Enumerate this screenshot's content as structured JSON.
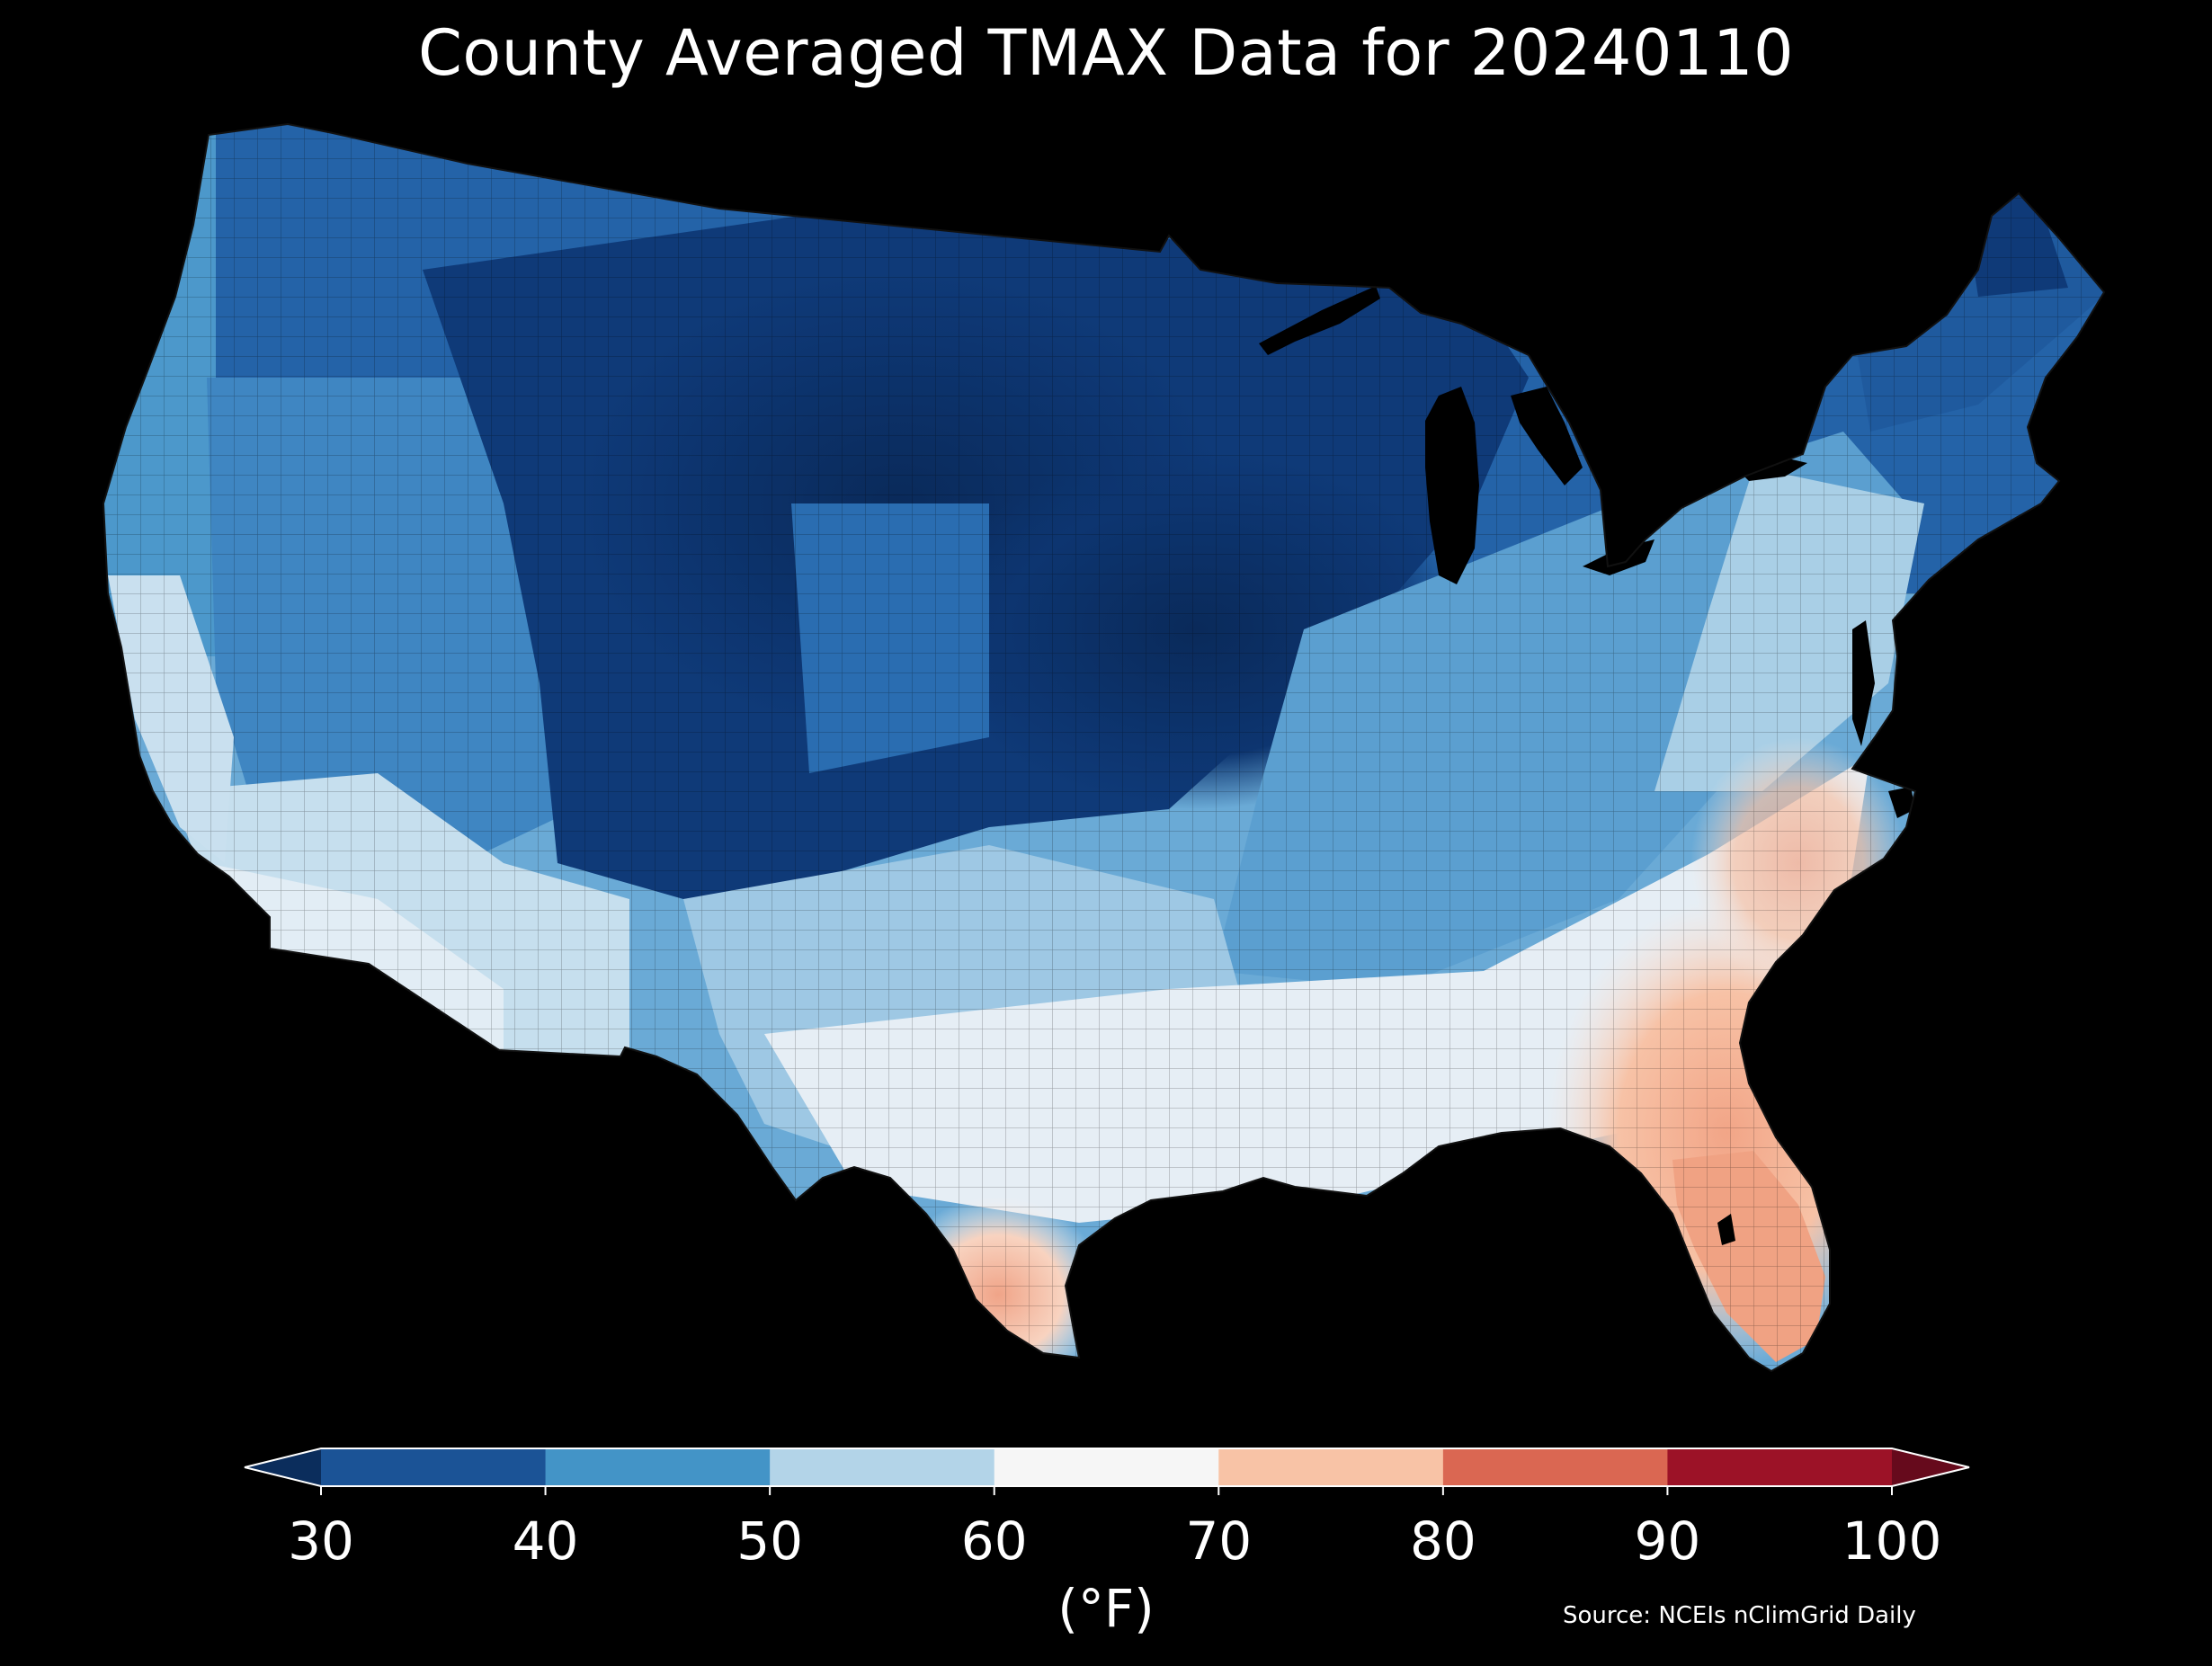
{
  "title": "County Averaged TMAX Data for 20240110",
  "colorbar": {
    "units": "(°F)",
    "ticks": [
      "30",
      "40",
      "50",
      "60",
      "70",
      "80",
      "90",
      "100"
    ],
    "bins": [
      {
        "range": "<30",
        "color": "#0b2d5c"
      },
      {
        "range": "30-40",
        "color": "#1b5396"
      },
      {
        "range": "40-50",
        "color": "#4394c7"
      },
      {
        "range": "50-60",
        "color": "#b3d4e8"
      },
      {
        "range": "60-70",
        "color": "#f6f6f6"
      },
      {
        "range": "70-80",
        "color": "#f8c3a6"
      },
      {
        "range": "80-90",
        "color": "#da6752"
      },
      {
        "range": "90-100",
        "color": "#9c1227"
      },
      {
        "range": ">100",
        "color": "#660a1c"
      }
    ]
  },
  "source": "Source: NCEIs nClimGrid Daily",
  "map": {
    "region": "Contiguous United States",
    "variable": "TMAX",
    "background": "#000000"
  }
}
